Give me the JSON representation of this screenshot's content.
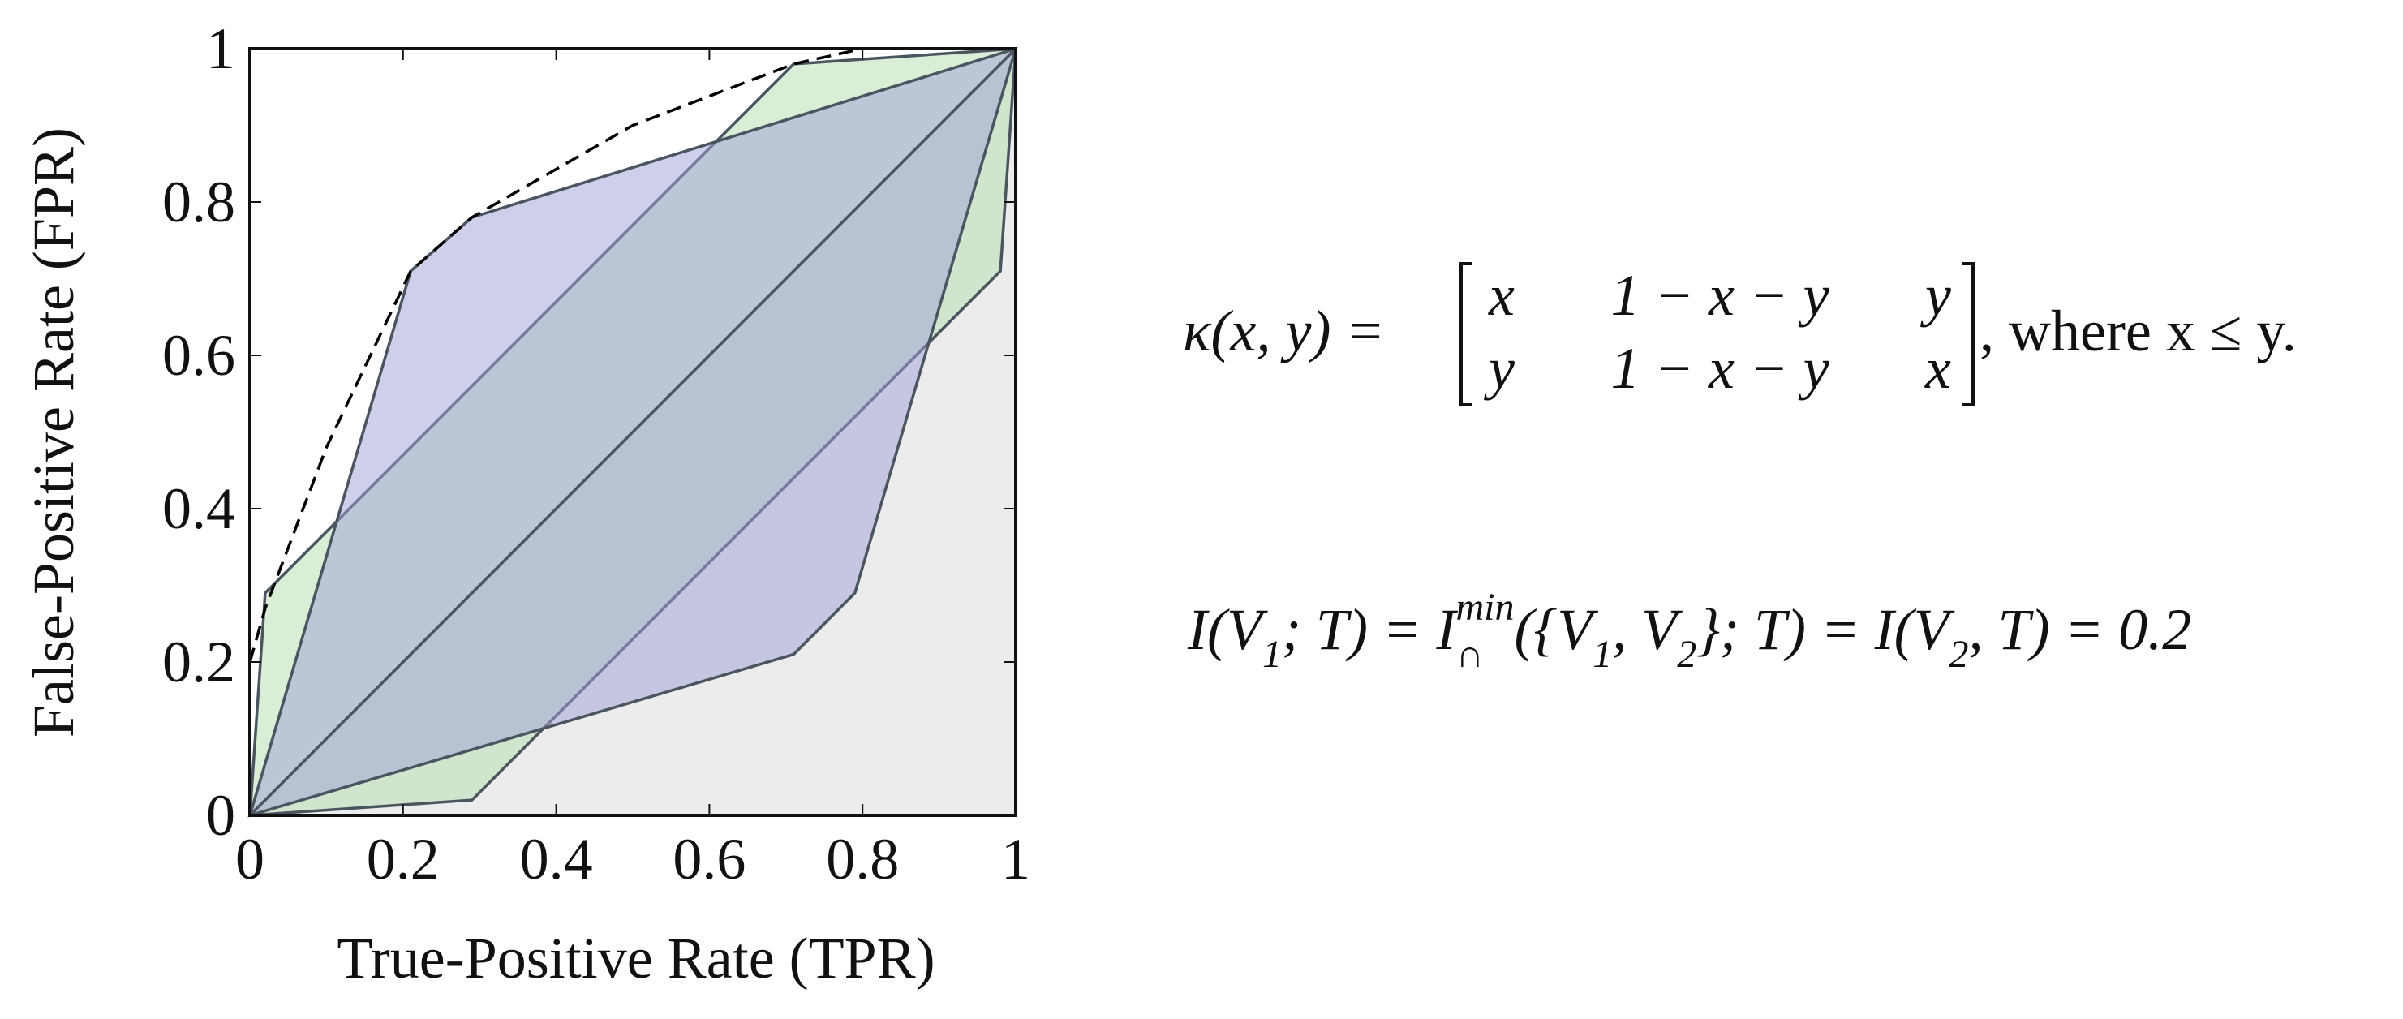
{
  "chart_data": {
    "type": "region",
    "xlabel": "True-Positive Rate (TPR)",
    "ylabel": "False-Positive Rate (FPR)",
    "xlim": [
      0,
      1
    ],
    "ylim": [
      0,
      1
    ],
    "xticks": [
      0,
      0.2,
      0.4,
      0.6,
      0.8,
      1
    ],
    "yticks": [
      0,
      0.2,
      0.4,
      0.6,
      0.8,
      1
    ],
    "series": [
      {
        "kind": "polygon",
        "color": "#b5dcae",
        "x": [
          0,
          0.02,
          0.71,
          1,
          0.98,
          0.29
        ],
        "values": [
          0,
          0.29,
          0.98,
          1,
          0.71,
          0.02
        ]
      },
      {
        "kind": "polygon",
        "color": "#9fa0d8",
        "x": [
          0,
          0.21,
          0.29,
          1,
          0.79,
          0.71
        ],
        "values": [
          0,
          0.71,
          0.78,
          1,
          0.29,
          0.21
        ]
      },
      {
        "kind": "line",
        "color": "#4a5560",
        "x": [
          0,
          1
        ],
        "values": [
          0,
          1
        ]
      },
      {
        "kind": "dashed",
        "color": "#000000",
        "x": [
          0,
          0.02,
          0.1,
          0.21,
          0.29,
          0.5,
          0.71,
          0.8
        ],
        "values": [
          0.2,
          0.27,
          0.48,
          0.71,
          0.78,
          0.9,
          0.98,
          1
        ]
      }
    ],
    "annotations": {
      "eq1_lhs": "κ(x, y) =",
      "eq1_matrix": [
        [
          "x",
          "1 − x − y",
          "y"
        ],
        [
          "y",
          "1 − x − y",
          "x"
        ]
      ],
      "eq1_rest": ", where x ≤ y.",
      "eq2": [
        {
          "text": "I(V"
        },
        {
          "text": "1",
          "script": "sub"
        },
        {
          "text": "; T) = I"
        },
        {
          "text": "min",
          "script": "sup"
        },
        {
          "text": "∩",
          "script": "sub"
        },
        {
          "text": "({V"
        },
        {
          "text": "1",
          "script": "sub"
        },
        {
          "text": ", V"
        },
        {
          "text": "2",
          "script": "sub"
        },
        {
          "text": "}; T) = I(V"
        },
        {
          "text": "2",
          "script": "sub"
        },
        {
          "text": ", T) = 0.2"
        }
      ]
    }
  }
}
